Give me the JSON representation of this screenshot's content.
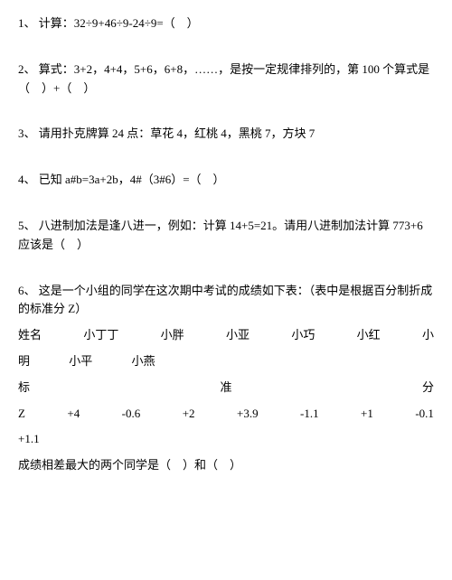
{
  "q1": {
    "number": "1、",
    "text": "计算：32÷9+46÷9-24÷9=（　）"
  },
  "q2": {
    "number": "2、",
    "text": "算式：3+2，4+4，5+6，6+8，……，是按一定规律排列的，第 100 个算式是（　）+（　）"
  },
  "q3": {
    "number": "3、",
    "text": "请用扑克牌算 24 点：草花 4，红桃 4，黑桃 7，方块 7"
  },
  "q4": {
    "number": "4、",
    "text": "已知 a#b=3a+2b，4#（3#6）=（　）"
  },
  "q5": {
    "number": "5、",
    "text": "八进制加法是逢八进一，例如：计算 14+5=21。请用八进制加法计算 773+6 应该是（　）"
  },
  "q6": {
    "number": "6、",
    "text": "这是一个小组的同学在这次期中考试的成绩如下表：（表中是根据百分制折成的标准分 Z）",
    "header_row": {
      "c0": "姓名",
      "c1": "小丁丁",
      "c2": "小胖",
      "c3": "小亚",
      "c4": "小巧",
      "c5": "小红",
      "c6": "小"
    },
    "header_wrap": {
      "c0": "明",
      "c1": "小平",
      "c2": "小燕"
    },
    "label_row": {
      "c0": "标",
      "c1": "准",
      "c2": "分"
    },
    "z_row": {
      "c0": "Z",
      "c1": "+4",
      "c2": "-0.6",
      "c3": "+2",
      "c4": "+3.9",
      "c5": "-1.1",
      "c6": "+1",
      "c7": "-0.1"
    },
    "z_wrap": "+1.1",
    "last": "成绩相差最大的两个同学是（　）和（　）"
  }
}
